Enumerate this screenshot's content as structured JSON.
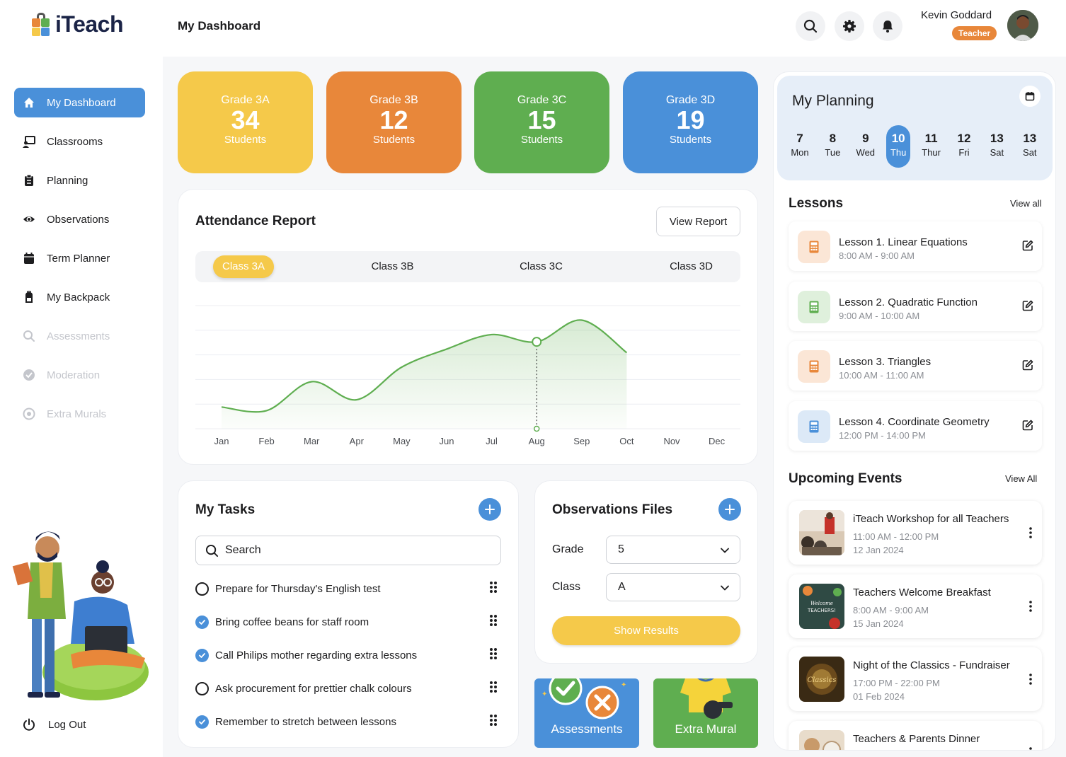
{
  "app": {
    "name": "iTeach"
  },
  "header": {
    "title": "My Dashboard",
    "user_name": "Kevin Goddard",
    "user_role": "Teacher"
  },
  "sidebar": {
    "items": [
      {
        "label": "My Dashboard",
        "icon": "home-icon",
        "state": "active"
      },
      {
        "label": "Classrooms",
        "icon": "classroom-icon",
        "state": "normal"
      },
      {
        "label": "Planning",
        "icon": "clipboard-icon",
        "state": "normal"
      },
      {
        "label": "Observations",
        "icon": "eye-icon",
        "state": "normal"
      },
      {
        "label": "Term Planner",
        "icon": "calendar-icon",
        "state": "normal"
      },
      {
        "label": "My Backpack",
        "icon": "backpack-icon",
        "state": "normal"
      },
      {
        "label": "Assessments",
        "icon": "search-icon",
        "state": "disabled"
      },
      {
        "label": "Moderation",
        "icon": "check-badge-icon",
        "state": "disabled"
      },
      {
        "label": "Extra Murals",
        "icon": "ball-icon",
        "state": "disabled"
      }
    ],
    "logout_label": "Log Out"
  },
  "grades": [
    {
      "name": "Grade 3A",
      "count": "34",
      "label": "Students",
      "color": "#f5c94a"
    },
    {
      "name": "Grade 3B",
      "count": "12",
      "label": "Students",
      "color": "#e8873a"
    },
    {
      "name": "Grade 3C",
      "count": "15",
      "label": "Students",
      "color": "#5fae50"
    },
    {
      "name": "Grade 3D",
      "count": "19",
      "label": "Students",
      "color": "#4a90d9"
    }
  ],
  "attendance": {
    "title": "Attendance Report",
    "view_report_label": "View Report",
    "tabs": [
      "Class 3A",
      "Class 3B",
      "Class 3C",
      "Class 3D"
    ],
    "active_tab": 0
  },
  "chart_data": {
    "type": "area",
    "x": [
      "Jan",
      "Feb",
      "Mar",
      "Apr",
      "May",
      "Jun",
      "Jul",
      "Aug",
      "Sep",
      "Oct",
      "Nov",
      "Dec"
    ],
    "series": [
      {
        "values": [
          0.3,
          0.25,
          0.65,
          0.4,
          0.85,
          1.1,
          1.3,
          1.2,
          1.5,
          1.05,
          null,
          null
        ]
      }
    ],
    "ylim": [
      0,
      1.7
    ],
    "highlight_x": "Aug",
    "grid": true,
    "color": "#5fae50"
  },
  "tasks": {
    "title": "My Tasks",
    "search_placeholder": "Search",
    "items": [
      {
        "text": "Prepare for Thursday's English test",
        "done": false
      },
      {
        "text": "Bring coffee beans for staff room",
        "done": true
      },
      {
        "text": "Call Philips mother regarding extra lessons",
        "done": true
      },
      {
        "text": "Ask procurement for prettier chalk colours",
        "done": false
      },
      {
        "text": "Remember to stretch between lessons",
        "done": true
      }
    ]
  },
  "observations": {
    "title": "Observations Files",
    "grade_label": "Grade",
    "grade_value": "5",
    "class_label": "Class",
    "class_value": "A",
    "button_label": "Show Results"
  },
  "tiles": [
    {
      "label": "Assessments",
      "color": "#4a90d9"
    },
    {
      "label": "Extra Mural",
      "color": "#5fae50"
    }
  ],
  "planning": {
    "title": "My Planning",
    "days": [
      {
        "num": "7",
        "name": "Mon"
      },
      {
        "num": "8",
        "name": "Tue"
      },
      {
        "num": "9",
        "name": "Wed"
      },
      {
        "num": "10",
        "name": "Thu"
      },
      {
        "num": "11",
        "name": "Thur"
      },
      {
        "num": "12",
        "name": "Fri"
      },
      {
        "num": "13",
        "name": "Sat"
      },
      {
        "num": "13",
        "name": "Sat"
      }
    ],
    "active_day": 3
  },
  "lessons": {
    "title": "Lessons",
    "view_all": "View all",
    "items": [
      {
        "title": "Lesson 1. Linear Equations",
        "time": "8:00 AM - 9:00 AM",
        "color": "#e8873a"
      },
      {
        "title": "Lesson 2. Quadratic Function",
        "time": "9:00 AM - 10:00 AM",
        "color": "#5fae50"
      },
      {
        "title": "Lesson 3. Triangles",
        "time": "10:00 AM - 11:00 AM",
        "color": "#e8873a"
      },
      {
        "title": "Lesson 4. Coordinate Geometry",
        "time": "12:00 PM - 14:00 PM",
        "color": "#4a90d9"
      }
    ]
  },
  "events": {
    "title": "Upcoming Events",
    "view_all": "View All",
    "items": [
      {
        "title": "iTeach Workshop for all Teachers",
        "time": "11:00 AM - 12:00 PM",
        "date": "12 Jan 2024"
      },
      {
        "title": "Teachers Welcome  Breakfast",
        "time": "8:00 AM - 9:00 AM",
        "date": "15 Jan 2024",
        "image_text": "Welcome TEACHERS!"
      },
      {
        "title": "Night of the Classics - Fundraiser",
        "time": "17:00 PM - 22:00 PM",
        "date": "01 Feb 2024",
        "image_text": "Classics"
      },
      {
        "title": "Teachers & Parents Dinner",
        "time": "",
        "date": ""
      }
    ]
  }
}
